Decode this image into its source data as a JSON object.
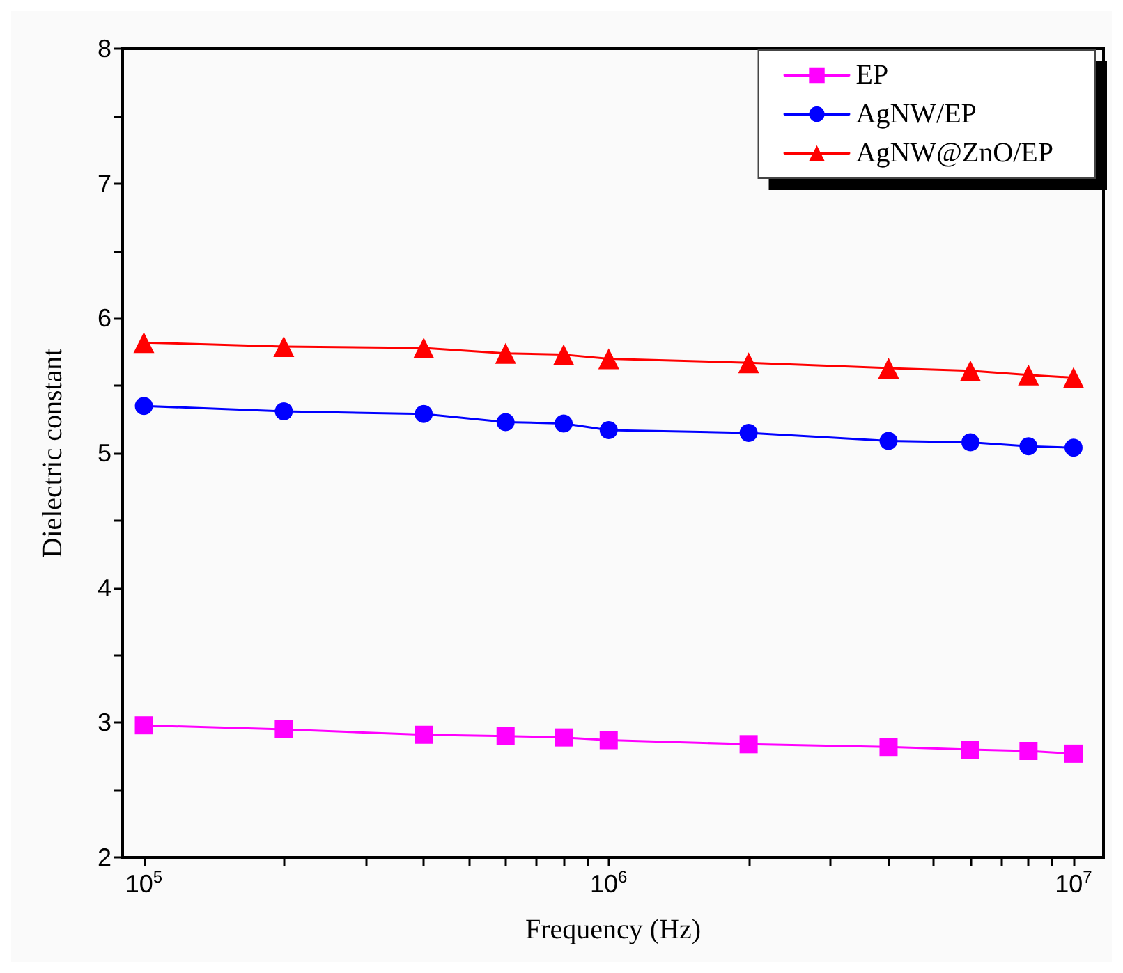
{
  "chart_data": {
    "type": "line",
    "xlabel": "Frequency (Hz)",
    "ylabel": "Dielectric constant",
    "x": [
      100000,
      200000,
      400000,
      600000,
      800000,
      1000000,
      2000000,
      4000000,
      6000000,
      8000000,
      10000000
    ],
    "series": [
      {
        "name": "EP",
        "color": "#ff00ff",
        "marker": "square",
        "values": [
          2.98,
          2.95,
          2.91,
          2.9,
          2.89,
          2.87,
          2.84,
          2.82,
          2.8,
          2.79,
          2.77
        ]
      },
      {
        "name": "AgNW/EP",
        "color": "#0000ff",
        "marker": "circle",
        "values": [
          5.35,
          5.31,
          5.29,
          5.23,
          5.22,
          5.17,
          5.15,
          5.09,
          5.08,
          5.05,
          5.04
        ]
      },
      {
        "name": "AgNW@ZnO/EP",
        "color": "#ff0000",
        "marker": "triangle",
        "values": [
          5.82,
          5.79,
          5.78,
          5.74,
          5.73,
          5.7,
          5.67,
          5.63,
          5.61,
          5.58,
          5.56
        ]
      }
    ],
    "log": "x",
    "xlim": [
      90000,
      11600000
    ],
    "xticks": [
      {
        "value": 100000,
        "label": "10$^{5}$"
      },
      {
        "value": 200000,
        "label": null
      },
      {
        "value": 300000,
        "label": null
      },
      {
        "value": 400000,
        "label": null
      },
      {
        "value": 500000,
        "label": null
      },
      {
        "value": 600000,
        "label": null
      },
      {
        "value": 700000,
        "label": null
      },
      {
        "value": 800000,
        "label": null
      },
      {
        "value": 900000,
        "label": null
      },
      {
        "value": 1000000,
        "label": "10$^{6}$"
      },
      {
        "value": 2000000,
        "label": null
      },
      {
        "value": 3000000,
        "label": null
      },
      {
        "value": 4000000,
        "label": null
      },
      {
        "value": 5000000,
        "label": null
      },
      {
        "value": 6000000,
        "label": null
      },
      {
        "value": 7000000,
        "label": null
      },
      {
        "value": 8000000,
        "label": null
      },
      {
        "value": 9000000,
        "label": null
      },
      {
        "value": 10000000,
        "label": "10$^{7}$"
      }
    ],
    "ylim": [
      2,
      8
    ],
    "yticks": [
      2,
      {
        "value": 2.5,
        "label": null
      },
      3,
      {
        "value": 3.5,
        "label": null
      },
      4,
      {
        "value": 4.5,
        "label": null
      },
      5,
      {
        "value": 5.5,
        "label": null
      },
      6,
      {
        "value": 6.5,
        "label": null
      },
      7,
      {
        "value": 7.5,
        "label": null
      },
      8
    ],
    "grid": false,
    "legend": "top right",
    "line_style": "solid"
  }
}
